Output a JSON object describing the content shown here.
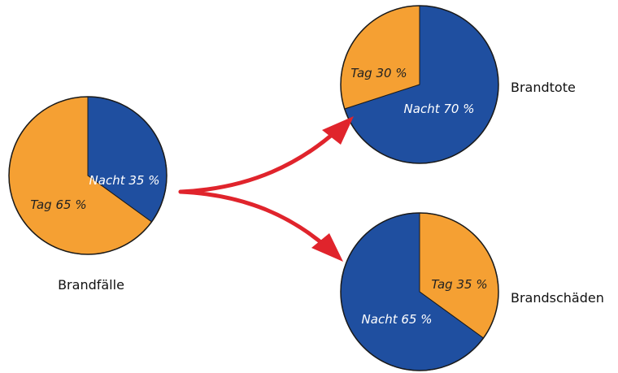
{
  "colors": {
    "nacht": "#1f4fa0",
    "tag": "#f5a033",
    "arrow": "#e0242c",
    "outline": "#1a1a1a",
    "label_on_dark": "#ffffff",
    "label_on_light": "#222222"
  },
  "arrows": "from Brandfälle to Brandtote and to Brandschäden",
  "chart_data": [
    {
      "type": "pie",
      "title": "Brandfälle",
      "slices": [
        {
          "label": "Nacht 35 %",
          "category": "Nacht",
          "value": 35
        },
        {
          "label": "Tag 65 %",
          "category": "Tag",
          "value": 65
        }
      ]
    },
    {
      "type": "pie",
      "title": "Brandtote",
      "slices": [
        {
          "label": "Nacht 70 %",
          "category": "Nacht",
          "value": 70
        },
        {
          "label": "Tag 30 %",
          "category": "Tag",
          "value": 30
        }
      ]
    },
    {
      "type": "pie",
      "title": "Brandschäden",
      "slices": [
        {
          "label": "Tag 35 %",
          "category": "Tag",
          "value": 35
        },
        {
          "label": "Nacht 65 %",
          "category": "Nacht",
          "value": 65
        }
      ]
    }
  ]
}
